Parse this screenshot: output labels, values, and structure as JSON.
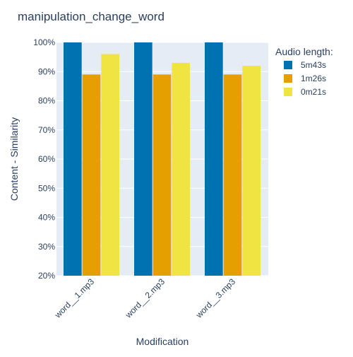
{
  "chart_data": {
    "type": "bar",
    "title": "manipulation_change_word",
    "xlabel": "Modification",
    "ylabel": "Content - Similarity",
    "categories": [
      "word__1.mp3",
      "word__2.mp3",
      "word__3.mp3"
    ],
    "series": [
      {
        "name": "5m43s",
        "values": [
          100,
          100,
          100
        ],
        "color": "#0072b2"
      },
      {
        "name": "1m26s",
        "values": [
          89,
          89,
          89
        ],
        "color": "#e69f00"
      },
      {
        "name": "0m21s",
        "values": [
          96,
          93,
          92
        ],
        "color": "#f0e442"
      }
    ],
    "ylim": [
      20,
      100
    ],
    "yticks": [
      20,
      30,
      40,
      50,
      60,
      70,
      80,
      90,
      100
    ],
    "ytick_labels": [
      "20%",
      "30%",
      "40%",
      "50%",
      "60%",
      "70%",
      "80%",
      "90%",
      "100%"
    ],
    "legend": {
      "title": "Audio length:",
      "placement": "top-right"
    },
    "grid": true,
    "plot_background": "#e5ecf6"
  }
}
